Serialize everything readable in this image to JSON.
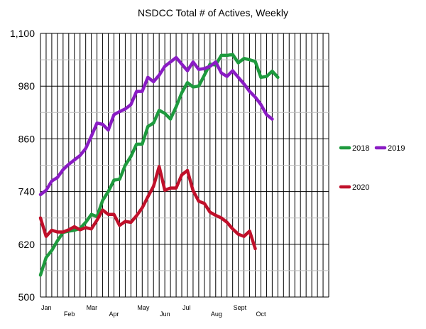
{
  "chart_data": {
    "type": "line",
    "title": "NSDCC Total # of Actives, Weekly",
    "xlabel": "",
    "ylabel": "",
    "ylim": [
      500,
      1100
    ],
    "yticks": [
      500,
      620,
      740,
      860,
      980,
      1100
    ],
    "ytick_labels": [
      "500",
      "620",
      "740",
      "860",
      "980",
      "1,100"
    ],
    "xtick_labels": [
      {
        "label": "Jan",
        "week": 0
      },
      {
        "label": "Feb",
        "week": 4
      },
      {
        "label": "Mar",
        "week": 8
      },
      {
        "label": "Apr",
        "week": 12
      },
      {
        "label": "May",
        "week": 17
      },
      {
        "label": "Jun",
        "week": 21
      },
      {
        "label": "Jul",
        "week": 25
      },
      {
        "label": "Aug",
        "week": 30
      },
      {
        "label": "Sept",
        "week": 34
      },
      {
        "label": "Oct",
        "week": 38
      }
    ],
    "weeks": 51,
    "grid": true,
    "colors": {
      "2018": "#1e9a3e",
      "2019": "#8a1cc4",
      "2020": "#c0102a"
    },
    "series": [
      {
        "name": "2018",
        "values": [
          550,
          590,
          606,
          628,
          647,
          650,
          652,
          656,
          670,
          688,
          683,
          720,
          740,
          766,
          768,
          800,
          820,
          848,
          848,
          888,
          896,
          925,
          918,
          905,
          933,
          965,
          988,
          978,
          980,
          1005,
          1030,
          1028,
          1050,
          1050,
          1052,
          1033,
          1043,
          1040,
          1036,
          1000,
          1002,
          1014,
          1000
        ]
      },
      {
        "name": "2019",
        "values": [
          733,
          743,
          764,
          772,
          790,
          802,
          812,
          822,
          838,
          866,
          896,
          893,
          880,
          915,
          922,
          928,
          938,
          968,
          968,
          1000,
          990,
          1005,
          1025,
          1035,
          1045,
          1030,
          1015,
          1035,
          1018,
          1020,
          1025,
          1035,
          1010,
          1002,
          1015,
          1000,
          985,
          968,
          955,
          938,
          915,
          905
        ]
      },
      {
        "name": "2020",
        "values": [
          680,
          638,
          652,
          648,
          648,
          653,
          660,
          653,
          658,
          655,
          675,
          698,
          688,
          688,
          663,
          672,
          670,
          685,
          703,
          728,
          752,
          797,
          743,
          748,
          748,
          778,
          788,
          742,
          718,
          713,
          693,
          686,
          680,
          670,
          655,
          643,
          638,
          650,
          610
        ]
      }
    ],
    "legend": [
      {
        "name": "2018",
        "position": "right"
      },
      {
        "name": "2019",
        "position": "right"
      },
      {
        "name": "2020",
        "position": "right"
      }
    ]
  }
}
